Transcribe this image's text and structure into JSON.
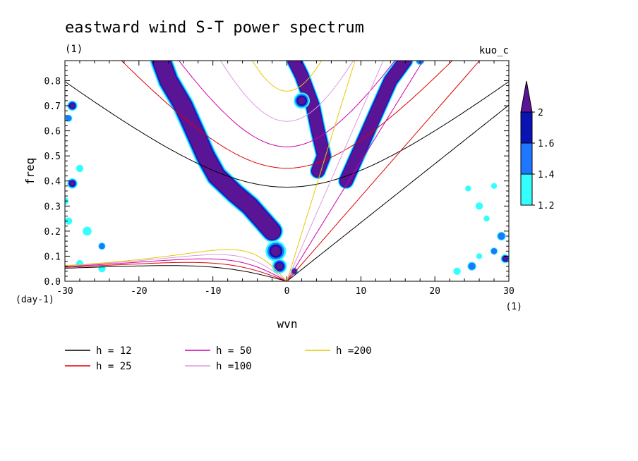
{
  "chart_data": {
    "type": "heatmap",
    "title": "eastward wind S-T power spectrum",
    "subtitle_left": "(1)",
    "subtitle_right": "kuo_c",
    "xlabel": "wvn",
    "ylabel": "freq",
    "x_unit": "(1)",
    "y_unit": "(day-1)",
    "xlim": [
      -30,
      30
    ],
    "ylim": [
      0,
      0.88
    ],
    "x_ticks": [
      -30,
      -20,
      -10,
      0,
      10,
      20,
      30
    ],
    "x_tick_labels": [
      "-30",
      "-20",
      "-10",
      "0",
      "10",
      "20",
      "30"
    ],
    "y_ticks": [
      0,
      0.1,
      0.2,
      0.3,
      0.4,
      0.5,
      0.6,
      0.7,
      0.8
    ],
    "y_tick_labels": [
      "0.0",
      "0.1",
      "0.2",
      "0.3",
      "0.4",
      "0.5",
      "0.6",
      "0.7",
      "0.8"
    ],
    "colorbar": {
      "levels": [
        1.2,
        1.4,
        1.6,
        2
      ],
      "labels": [
        "1.2",
        "1.4",
        "1.6",
        "2"
      ],
      "colors": [
        "#33ffff",
        "#1e78ff",
        "#0a14b4",
        "#5a1496"
      ]
    },
    "dispersion_curves": [
      {
        "label": "h = 12",
        "h": 12,
        "color": "#000000"
      },
      {
        "label": "h = 25",
        "h": 25,
        "color": "#dd0000"
      },
      {
        "label": "h = 50",
        "h": 50,
        "color": "#cc00aa"
      },
      {
        "label": "h =100",
        "h": 100,
        "color": "#dd99dd"
      },
      {
        "label": "h =200",
        "h": 200,
        "color": "#e6c800"
      }
    ],
    "power_bands": [
      {
        "name": "westward-band-left",
        "points": [
          [
            -17,
            0.88
          ],
          [
            -16,
            0.8
          ],
          [
            -14,
            0.7
          ],
          [
            -12.5,
            0.6
          ],
          [
            -11,
            0.5
          ],
          [
            -9.5,
            0.42
          ],
          [
            -7,
            0.35
          ],
          [
            -5,
            0.3
          ],
          [
            -3.5,
            0.25
          ],
          [
            -2,
            0.2
          ]
        ],
        "width": 3.0
      },
      {
        "name": "eastward-band-center",
        "points": [
          [
            1,
            0.88
          ],
          [
            2,
            0.82
          ],
          [
            3.5,
            0.7
          ],
          [
            4.2,
            0.6
          ],
          [
            5,
            0.5
          ],
          [
            4.2,
            0.44
          ]
        ],
        "width": 2.2
      },
      {
        "name": "eastward-band-right",
        "points": [
          [
            8,
            0.4
          ],
          [
            9.5,
            0.5
          ],
          [
            11,
            0.6
          ],
          [
            12.5,
            0.7
          ],
          [
            14,
            0.8
          ],
          [
            16,
            0.88
          ]
        ],
        "width": 2.2
      }
    ],
    "power_blobs": [
      {
        "x": 2,
        "y": 0.72,
        "r": 1.1,
        "level": 4
      },
      {
        "x": -1.5,
        "y": 0.12,
        "r": 1.4,
        "level": 4
      },
      {
        "x": -1,
        "y": 0.06,
        "r": 1.0,
        "level": 4
      },
      {
        "x": 1,
        "y": 0.04,
        "r": 0.5,
        "level": 4
      },
      {
        "x": -29,
        "y": 0.7,
        "r": 0.7,
        "level": 4
      },
      {
        "x": -29.5,
        "y": 0.65,
        "r": 0.5,
        "level": 2
      },
      {
        "x": -29,
        "y": 0.39,
        "r": 0.7,
        "level": 4
      },
      {
        "x": -28,
        "y": 0.45,
        "r": 0.5,
        "level": 1
      },
      {
        "x": -29.5,
        "y": 0.24,
        "r": 0.5,
        "level": 1
      },
      {
        "x": -27,
        "y": 0.2,
        "r": 0.6,
        "level": 1
      },
      {
        "x": -25,
        "y": 0.14,
        "r": 0.5,
        "level": 2
      },
      {
        "x": -28,
        "y": 0.07,
        "r": 0.5,
        "level": 1
      },
      {
        "x": -25,
        "y": 0.05,
        "r": 0.5,
        "level": 1
      },
      {
        "x": -30,
        "y": 0.32,
        "r": 0.5,
        "level": 1
      },
      {
        "x": 29,
        "y": 0.18,
        "r": 0.6,
        "level": 2
      },
      {
        "x": 29.5,
        "y": 0.09,
        "r": 0.6,
        "level": 4
      },
      {
        "x": 28,
        "y": 0.12,
        "r": 0.5,
        "level": 2
      },
      {
        "x": 26,
        "y": 0.3,
        "r": 0.5,
        "level": 1
      },
      {
        "x": 25,
        "y": 0.06,
        "r": 0.6,
        "level": 2
      },
      {
        "x": 23,
        "y": 0.04,
        "r": 0.5,
        "level": 1
      },
      {
        "x": 24.5,
        "y": 0.37,
        "r": 0.4,
        "level": 1
      },
      {
        "x": 28,
        "y": 0.38,
        "r": 0.4,
        "level": 1
      },
      {
        "x": 27,
        "y": 0.25,
        "r": 0.4,
        "level": 1
      },
      {
        "x": 26,
        "y": 0.1,
        "r": 0.4,
        "level": 1
      },
      {
        "x": 18,
        "y": 0.88,
        "r": 0.6,
        "level": 2
      }
    ]
  }
}
